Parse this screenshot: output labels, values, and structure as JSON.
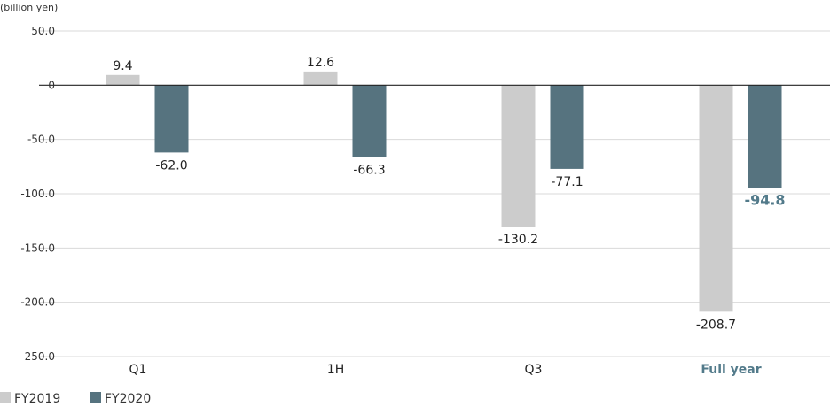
{
  "chart_data": {
    "type": "bar",
    "title": "",
    "unit_label": "(billion yen)",
    "xlabel": "",
    "ylabel": "",
    "categories": [
      "Q1",
      "1H",
      "Q3",
      "Full year"
    ],
    "highlight_category": "Full year",
    "series": [
      {
        "name": "FY2019",
        "color": "#cccccc",
        "values": [
          9.4,
          12.6,
          -130.2,
          -208.7
        ],
        "value_labels": [
          "9.4",
          "12.6",
          "-130.2",
          "-208.7"
        ]
      },
      {
        "name": "FY2020",
        "color": "#56737f",
        "values": [
          -62.0,
          -66.3,
          -77.1,
          -94.8
        ],
        "value_labels": [
          "-62.0",
          "-66.3",
          "-77.1",
          "-94.8"
        ]
      }
    ],
    "ylim": [
      -250,
      50
    ],
    "yticks": [
      50,
      0,
      -50,
      -100,
      -150,
      -200,
      -250
    ],
    "ytick_labels": [
      "50.0",
      "0",
      "-50.0",
      "-100.0",
      "-150.0",
      "-200.0",
      "-250.0"
    ],
    "grid": true,
    "zero_line_color": "#222222",
    "grid_color": "#d9d9d9",
    "highlight_color": "#527a8a",
    "legend_position": "bottom-left"
  }
}
